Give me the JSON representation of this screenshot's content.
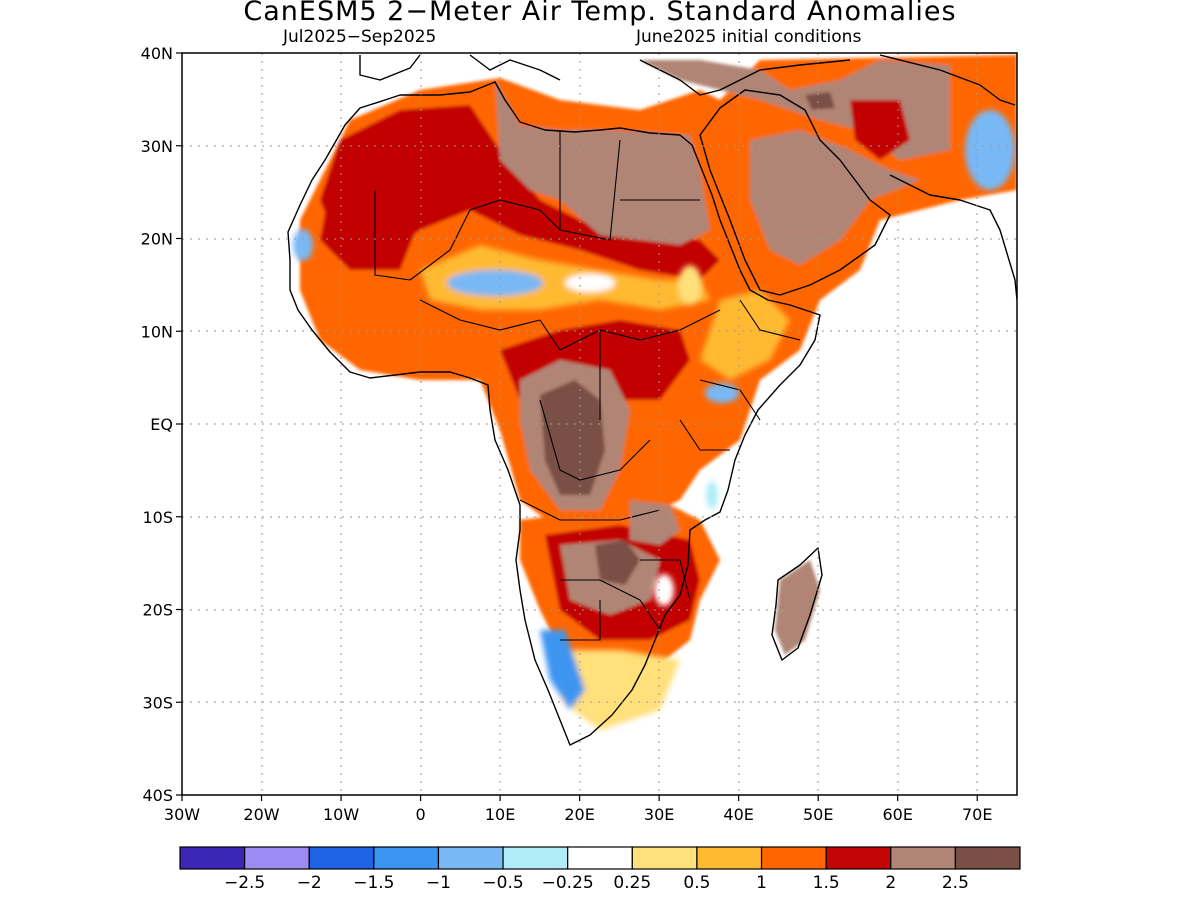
{
  "title": "CanESM5 2−Meter Air Temp. Standard Anomalies",
  "subtitle_period": "Jul2025−Sep2025",
  "subtitle_init": "June2025 initial conditions",
  "map": {
    "lon_range": [
      -30,
      75
    ],
    "lat_range": [
      -40,
      40
    ],
    "lat_ticks": [
      {
        "value": 40,
        "label": "40N"
      },
      {
        "value": 30,
        "label": "30N"
      },
      {
        "value": 20,
        "label": "20N"
      },
      {
        "value": 10,
        "label": "10N"
      },
      {
        "value": 0,
        "label": "EQ"
      },
      {
        "value": -10,
        "label": "10S"
      },
      {
        "value": -20,
        "label": "20S"
      },
      {
        "value": -30,
        "label": "30S"
      },
      {
        "value": -40,
        "label": "40S"
      }
    ],
    "lon_ticks": [
      {
        "value": -30,
        "label": "30W"
      },
      {
        "value": -20,
        "label": "20W"
      },
      {
        "value": -10,
        "label": "10W"
      },
      {
        "value": 0,
        "label": "0"
      },
      {
        "value": 10,
        "label": "10E"
      },
      {
        "value": 20,
        "label": "20E"
      },
      {
        "value": 30,
        "label": "30E"
      },
      {
        "value": 40,
        "label": "40E"
      },
      {
        "value": 50,
        "label": "50E"
      },
      {
        "value": 60,
        "label": "60E"
      },
      {
        "value": 70,
        "label": "70E"
      }
    ]
  },
  "colorbar": {
    "colors": [
      "#3b25b5",
      "#9c8cf2",
      "#1e63e6",
      "#3c95f0",
      "#78b8f5",
      "#b0ecf7",
      "#ffffff",
      "#ffe07a",
      "#ffba33",
      "#ff6600",
      "#c20505",
      "#b08575",
      "#7a4f45"
    ],
    "labels": [
      "−2.5",
      "−2",
      "−1.5",
      "−1",
      "−0.5",
      "−0.25",
      "0.25",
      "0.5",
      "1",
      "1.5",
      "2",
      "2.5"
    ]
  }
}
